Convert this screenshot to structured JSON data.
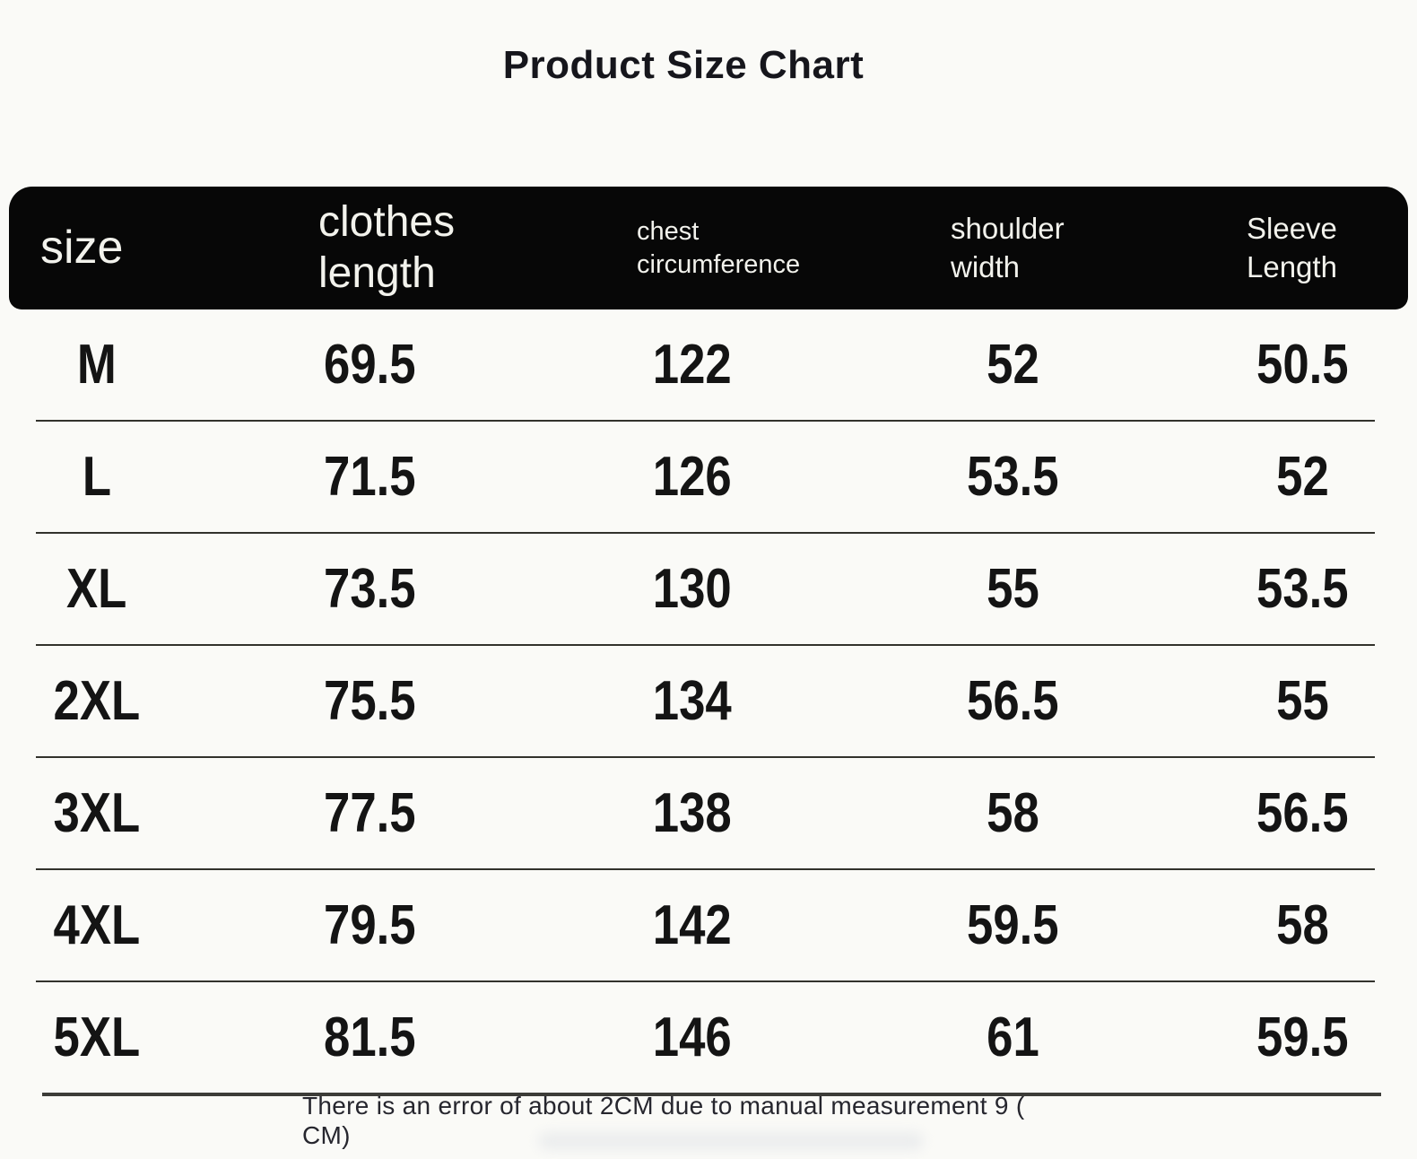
{
  "title": "Product Size Chart",
  "table": {
    "header": {
      "columns": [
        {
          "name": "size",
          "lines": [
            "size"
          ]
        },
        {
          "name": "clothes-length",
          "lines": [
            "clothes",
            "length"
          ]
        },
        {
          "name": "chest-circumference",
          "lines": [
            "chest",
            "circumference"
          ]
        },
        {
          "name": "shoulder-width",
          "lines": [
            "shoulder",
            "width"
          ]
        },
        {
          "name": "sleeve-length",
          "lines": [
            "Sleeve",
            "Length"
          ]
        }
      ]
    },
    "rows": [
      {
        "size": "M",
        "values": [
          "69.5",
          "122",
          "52",
          "50.5"
        ]
      },
      {
        "size": "L",
        "values": [
          "71.5",
          "126",
          "53.5",
          "52"
        ]
      },
      {
        "size": "XL",
        "values": [
          "73.5",
          "130",
          "55",
          "53.5"
        ]
      },
      {
        "size": "2XL",
        "values": [
          "75.5",
          "134",
          "56.5",
          "55"
        ]
      },
      {
        "size": "3XL",
        "values": [
          "77.5",
          "138",
          "58",
          "56.5"
        ]
      },
      {
        "size": "4XL",
        "values": [
          "79.5",
          "142",
          "59.5",
          "58"
        ]
      },
      {
        "size": "5XL",
        "values": [
          "81.5",
          "146",
          "61",
          "59.5"
        ]
      }
    ]
  },
  "note": {
    "line1": "There is an error of about 2CM due to manual measurement 9 (",
    "line2": "CM)"
  },
  "colors": {
    "header_bg": "#070707",
    "header_text": "#f2f2ec",
    "body_text": "#141414",
    "note_text": "#26262e",
    "background": "#fafaf7",
    "divider": "#32322c"
  },
  "chart_data": {
    "type": "table",
    "title": "Product Size Chart",
    "columns": [
      "size",
      "clothes length",
      "chest circumference",
      "shoulder width",
      "Sleeve Length"
    ],
    "rows": [
      [
        "M",
        69.5,
        122,
        52,
        50.5
      ],
      [
        "L",
        71.5,
        126,
        53.5,
        52
      ],
      [
        "XL",
        73.5,
        130,
        55,
        53.5
      ],
      [
        "2XL",
        75.5,
        134,
        56.5,
        55
      ],
      [
        "3XL",
        77.5,
        138,
        58,
        56.5
      ],
      [
        "4XL",
        79.5,
        142,
        59.5,
        58
      ],
      [
        "5XL",
        81.5,
        146,
        61,
        59.5
      ]
    ],
    "note": "There is an error of about 2CM due to manual measurement 9 ( CM)"
  }
}
